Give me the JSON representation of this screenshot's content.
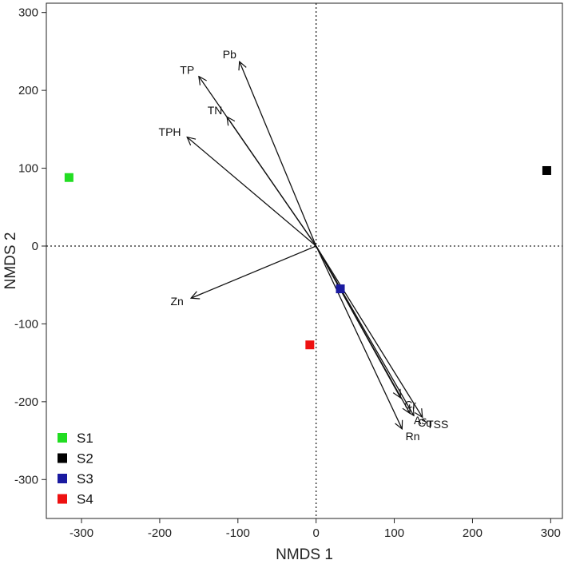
{
  "chart_data": {
    "type": "scatter",
    "title": "",
    "xlabel": "NMDS 1",
    "ylabel": "NMDS 2",
    "xlim": [
      -345,
      315
    ],
    "ylim": [
      -350,
      312
    ],
    "xticks": [
      -300,
      -200,
      -100,
      0,
      100,
      200,
      300
    ],
    "yticks": [
      -300,
      -200,
      -100,
      0,
      100,
      200,
      300
    ],
    "xtick_labels": [
      "-300",
      "-200",
      "-100",
      "0",
      "100",
      "200",
      "300"
    ],
    "ytick_labels": [
      "-300",
      "-200",
      "-100",
      "0",
      "100",
      "200",
      "300"
    ],
    "reference_lines": {
      "x": 0,
      "y": 0,
      "style": "dotted"
    },
    "points": [
      {
        "name": "S1",
        "x": -316,
        "y": 88,
        "color": "#22dd22"
      },
      {
        "name": "S2",
        "x": 295,
        "y": 97,
        "color": "#000000"
      },
      {
        "name": "S3",
        "x": 31,
        "y": -55,
        "color": "#1a1aa0"
      },
      {
        "name": "S4",
        "x": -8,
        "y": -127,
        "color": "#ee1111"
      }
    ],
    "vectors": [
      {
        "label": "Pb",
        "x": -98,
        "y": 237
      },
      {
        "label": "TP",
        "x": -150,
        "y": 218
      },
      {
        "label": "TN",
        "x": -114,
        "y": 166
      },
      {
        "label": "TPH",
        "x": -165,
        "y": 140
      },
      {
        "label": "Zn",
        "x": -160,
        "y": -67
      },
      {
        "label": "Cr",
        "x": 108,
        "y": -195
      },
      {
        "label": "As",
        "x": 120,
        "y": -215
      },
      {
        "label": "TSS",
        "x": 136,
        "y": -220
      },
      {
        "label": "Cu",
        "x": 125,
        "y": -218
      },
      {
        "label": "Rn",
        "x": 110,
        "y": -235
      }
    ],
    "legend": {
      "position": "bottom-left",
      "entries": [
        {
          "label": "S1",
          "color": "#22dd22"
        },
        {
          "label": "S2",
          "color": "#000000"
        },
        {
          "label": "S3",
          "color": "#1a1aa0"
        },
        {
          "label": "S4",
          "color": "#ee1111"
        }
      ]
    },
    "grid": false
  }
}
